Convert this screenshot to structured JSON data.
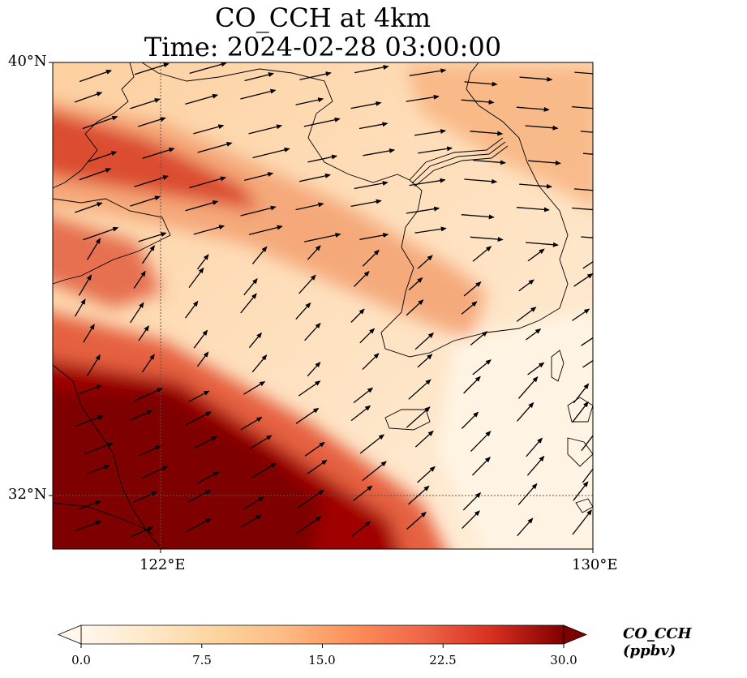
{
  "title_line1": "CO_CCH at 4km",
  "title_line2": "Time: 2024-02-28 03:00:00",
  "lat_ticks": [
    "40°N",
    "32°N"
  ],
  "lon_ticks": [
    "122°E",
    "130°E"
  ],
  "colorbar": {
    "label": "CO_CCH (ppbv)",
    "ticks": [
      "0.0",
      "7.5",
      "15.0",
      "22.5",
      "30.0"
    ],
    "min": 0,
    "max": 30,
    "colormap": [
      "#fff7ec",
      "#fdd49e",
      "#fdbb84",
      "#fc8d59",
      "#ef6548",
      "#d7301f",
      "#b30000",
      "#7f0000"
    ]
  }
}
